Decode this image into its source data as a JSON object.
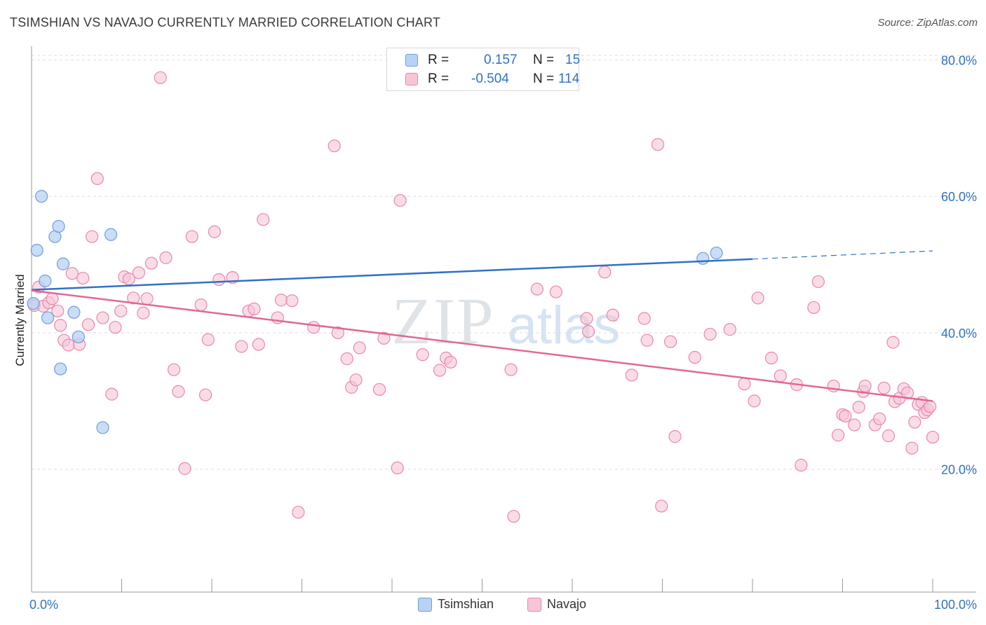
{
  "header": {
    "title": "TSIMSHIAN VS NAVAJO CURRENTLY MARRIED CORRELATION CHART",
    "source": "Source: ZipAtlas.com"
  },
  "watermark": {
    "zip": "ZIP",
    "atlas": "atlas"
  },
  "legend": {
    "r_label": "R =",
    "n_label": "N =",
    "rows": [
      {
        "series": "Tsimshian",
        "r": "0.157",
        "n": "15"
      },
      {
        "series": "Navajo",
        "r": "-0.504",
        "n": "114"
      }
    ]
  },
  "colors": {
    "tsimshian_fill": "#b8d2f3",
    "tsimshian_stroke": "#6c9fdc",
    "tsimshian_line": "#2f72c6",
    "navajo_fill": "#f7c5d7",
    "navajo_stroke": "#e888ab",
    "navajo_line": "#e06896",
    "tick_label": "#2f72c6",
    "grid": "#dddddd"
  },
  "chart_data": {
    "type": "scatter",
    "title": "TSIMSHIAN VS NAVAJO CURRENTLY MARRIED CORRELATION CHART",
    "xlabel": "",
    "ylabel": "Currently Married",
    "xlim": [
      0,
      100
    ],
    "ylim": [
      2,
      82
    ],
    "x_tick_labels": [
      {
        "value": 0,
        "label": "0.0%"
      },
      {
        "value": 100,
        "label": "100.0%"
      }
    ],
    "y_tick_labels": [
      {
        "value": 20,
        "label": "20.0%"
      },
      {
        "value": 40,
        "label": "40.0%"
      },
      {
        "value": 60,
        "label": "60.0%"
      },
      {
        "value": 80,
        "label": "80.0%"
      }
    ],
    "x_minor_ticks": [
      0,
      10,
      20,
      30,
      40,
      50,
      60,
      70,
      80,
      90,
      100
    ],
    "grid": true,
    "legend_position": "top-center",
    "series": [
      {
        "name": "Tsimshian",
        "trend": {
          "x0": 0,
          "y0": 46.3,
          "x1": 80,
          "y1": 50.8,
          "dashed_to_x": 100,
          "dashed_to_y": 52.0
        },
        "points": [
          [
            0.2,
            44.3
          ],
          [
            0.6,
            52.1
          ],
          [
            1.1,
            60.0
          ],
          [
            1.5,
            47.6
          ],
          [
            1.8,
            42.2
          ],
          [
            2.6,
            54.1
          ],
          [
            3.0,
            55.6
          ],
          [
            3.2,
            34.7
          ],
          [
            3.5,
            50.1
          ],
          [
            4.7,
            43.0
          ],
          [
            5.2,
            39.4
          ],
          [
            7.9,
            26.1
          ],
          [
            8.8,
            54.4
          ],
          [
            74.5,
            50.9
          ],
          [
            76.0,
            51.7
          ]
        ]
      },
      {
        "name": "Navajo",
        "trend": {
          "x0": 0,
          "y0": 46.2,
          "x1": 100,
          "y1": 30.0
        },
        "points": [
          [
            0.3,
            44.0
          ],
          [
            0.8,
            46.7
          ],
          [
            1.3,
            43.9
          ],
          [
            1.9,
            44.4
          ],
          [
            2.3,
            45.0
          ],
          [
            2.9,
            43.2
          ],
          [
            3.2,
            41.1
          ],
          [
            3.6,
            38.9
          ],
          [
            4.1,
            38.2
          ],
          [
            4.5,
            48.7
          ],
          [
            5.3,
            38.3
          ],
          [
            5.7,
            48.0
          ],
          [
            6.3,
            41.2
          ],
          [
            6.7,
            54.1
          ],
          [
            7.3,
            62.6
          ],
          [
            7.9,
            42.2
          ],
          [
            8.9,
            31.0
          ],
          [
            9.3,
            40.8
          ],
          [
            9.9,
            43.2
          ],
          [
            10.3,
            48.2
          ],
          [
            10.8,
            47.9
          ],
          [
            11.3,
            45.1
          ],
          [
            11.9,
            48.8
          ],
          [
            12.4,
            42.9
          ],
          [
            12.8,
            45.0
          ],
          [
            13.3,
            50.2
          ],
          [
            14.3,
            77.4
          ],
          [
            14.9,
            51.0
          ],
          [
            15.8,
            34.6
          ],
          [
            16.3,
            31.4
          ],
          [
            17.0,
            20.1
          ],
          [
            17.8,
            54.1
          ],
          [
            18.8,
            44.1
          ],
          [
            19.3,
            30.9
          ],
          [
            19.6,
            39.0
          ],
          [
            20.3,
            54.8
          ],
          [
            20.8,
            47.8
          ],
          [
            22.3,
            48.1
          ],
          [
            23.3,
            38.0
          ],
          [
            24.1,
            43.2
          ],
          [
            24.7,
            43.5
          ],
          [
            25.2,
            38.3
          ],
          [
            25.7,
            56.6
          ],
          [
            27.3,
            42.2
          ],
          [
            27.7,
            44.8
          ],
          [
            28.9,
            44.7
          ],
          [
            29.6,
            13.7
          ],
          [
            31.3,
            40.8
          ],
          [
            33.6,
            67.4
          ],
          [
            34.0,
            40.0
          ],
          [
            35.0,
            36.2
          ],
          [
            35.5,
            32.0
          ],
          [
            36.0,
            33.1
          ],
          [
            36.4,
            37.8
          ],
          [
            38.6,
            31.7
          ],
          [
            39.1,
            39.2
          ],
          [
            40.6,
            20.2
          ],
          [
            40.9,
            59.4
          ],
          [
            43.4,
            36.8
          ],
          [
            45.3,
            34.5
          ],
          [
            46.0,
            36.3
          ],
          [
            46.5,
            35.7
          ],
          [
            53.2,
            34.6
          ],
          [
            53.5,
            13.1
          ],
          [
            56.1,
            46.4
          ],
          [
            58.2,
            46.0
          ],
          [
            61.6,
            42.1
          ],
          [
            61.8,
            40.2
          ],
          [
            63.6,
            48.9
          ],
          [
            64.5,
            42.6
          ],
          [
            66.6,
            33.8
          ],
          [
            68.0,
            42.1
          ],
          [
            68.3,
            38.9
          ],
          [
            69.5,
            67.6
          ],
          [
            69.9,
            14.6
          ],
          [
            70.9,
            38.7
          ],
          [
            71.4,
            24.8
          ],
          [
            73.6,
            36.4
          ],
          [
            75.3,
            39.8
          ],
          [
            77.5,
            40.5
          ],
          [
            79.1,
            32.5
          ],
          [
            80.2,
            30.0
          ],
          [
            80.6,
            45.1
          ],
          [
            82.1,
            36.3
          ],
          [
            83.1,
            33.7
          ],
          [
            84.9,
            32.4
          ],
          [
            85.4,
            20.6
          ],
          [
            86.8,
            43.7
          ],
          [
            87.3,
            47.5
          ],
          [
            89.0,
            32.2
          ],
          [
            89.5,
            25.0
          ],
          [
            90.0,
            28.0
          ],
          [
            90.3,
            27.8
          ],
          [
            91.3,
            26.5
          ],
          [
            91.8,
            29.1
          ],
          [
            92.3,
            31.4
          ],
          [
            92.5,
            32.2
          ],
          [
            93.6,
            26.5
          ],
          [
            94.1,
            27.4
          ],
          [
            94.6,
            31.9
          ],
          [
            95.1,
            24.9
          ],
          [
            95.6,
            38.6
          ],
          [
            95.8,
            29.9
          ],
          [
            96.3,
            30.4
          ],
          [
            96.8,
            31.8
          ],
          [
            97.2,
            31.2
          ],
          [
            97.7,
            23.1
          ],
          [
            98.0,
            26.9
          ],
          [
            98.4,
            29.5
          ],
          [
            98.8,
            29.8
          ],
          [
            99.1,
            28.3
          ],
          [
            99.4,
            28.7
          ],
          [
            99.7,
            29.2
          ],
          [
            100.0,
            24.7
          ]
        ]
      }
    ]
  }
}
